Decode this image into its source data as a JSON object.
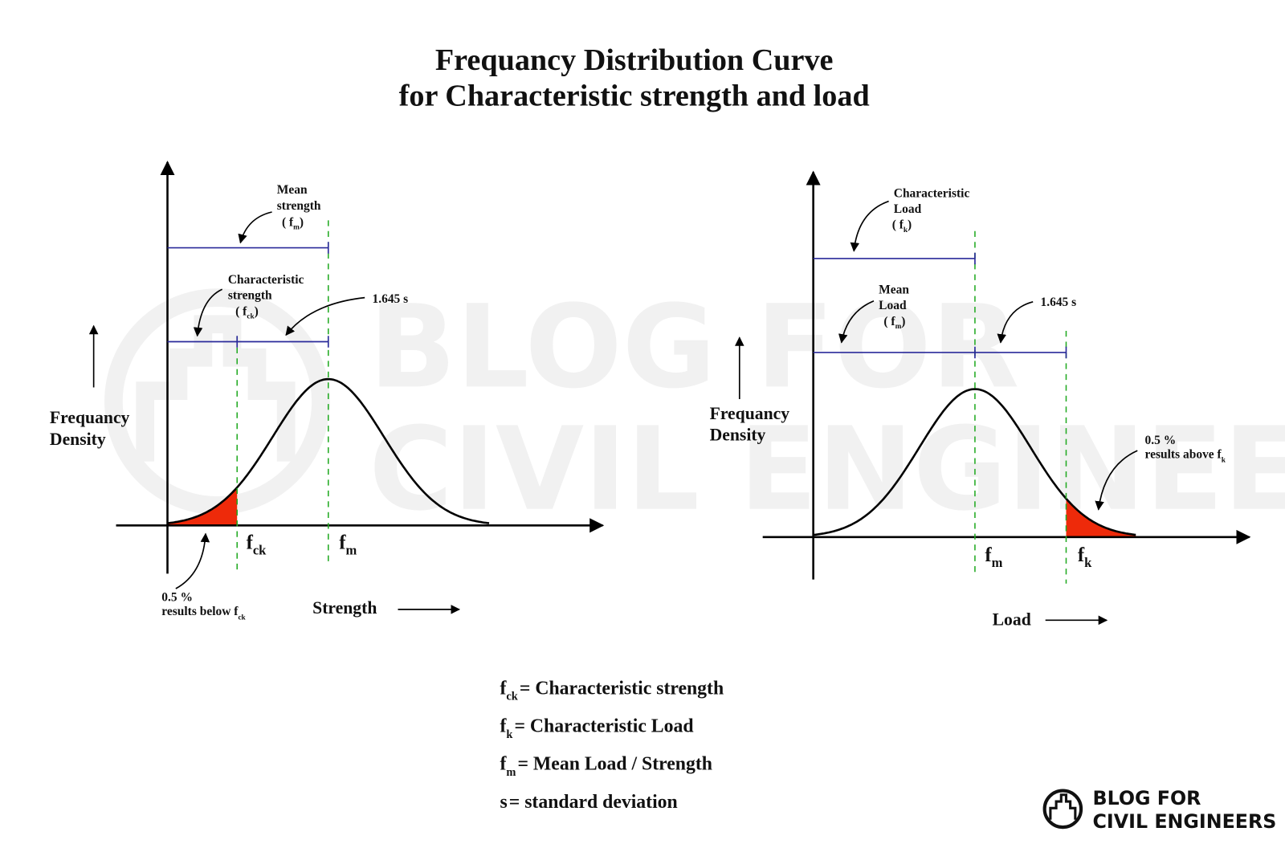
{
  "header": {
    "title_lines": [
      "Frequancy Distribution Curve",
      "for Characteristic strength and load"
    ]
  },
  "watermark": {
    "lines": [
      "BLOG FOR",
      "CIVIL ENGINEERS"
    ]
  },
  "left_diagram": {
    "y_axis_label": [
      "Frequancy",
      "Density"
    ],
    "x_axis_label": "Strength",
    "mean_label": {
      "lines": [
        "Mean",
        "strength"
      ],
      "open": "( f",
      "sub": "m",
      "close": ")"
    },
    "characteristic_label": {
      "lines": [
        "Characteristic",
        "strength"
      ],
      "open": "( f",
      "sub": "ck",
      "close": ")"
    },
    "deviation_label": "1.645 s",
    "tail_label": {
      "lines": [
        "0.5 %",
        "results below f"
      ],
      "sub": "ck"
    },
    "marker_characteristic": {
      "symbol": "f",
      "sub": "ck"
    },
    "marker_mean": {
      "symbol": "f",
      "sub": "m"
    }
  },
  "right_diagram": {
    "y_axis_label": [
      "Frequancy",
      "Density"
    ],
    "x_axis_label": "Load",
    "characteristic_label": {
      "lines": [
        "Characteristic",
        "Load"
      ],
      "open": "( f",
      "sub": "k",
      "close": ")"
    },
    "mean_label": {
      "lines": [
        "Mean",
        "Load"
      ],
      "open": "( f",
      "sub": "m",
      "close": ")"
    },
    "deviation_label": "1.645 s",
    "tail_label": {
      "lines": [
        "0.5 %",
        "results above f"
      ],
      "sub": "k"
    },
    "marker_mean": {
      "symbol": "f",
      "sub": "m"
    },
    "marker_characteristic": {
      "symbol": "f",
      "sub": "k"
    }
  },
  "legend": [
    {
      "symbol": "f",
      "sub": "ck",
      "text": "= Characteristic strength"
    },
    {
      "symbol": "f",
      "sub": "k",
      "text": "= Characteristic Load"
    },
    {
      "symbol": "f",
      "sub": "m",
      "text": "= Mean Load / Strength"
    },
    {
      "symbol": "s",
      "text": "= standard deviation"
    }
  ],
  "logo": {
    "lines": [
      "BLOG FOR",
      "CIVIL ENGINEERS"
    ]
  }
}
